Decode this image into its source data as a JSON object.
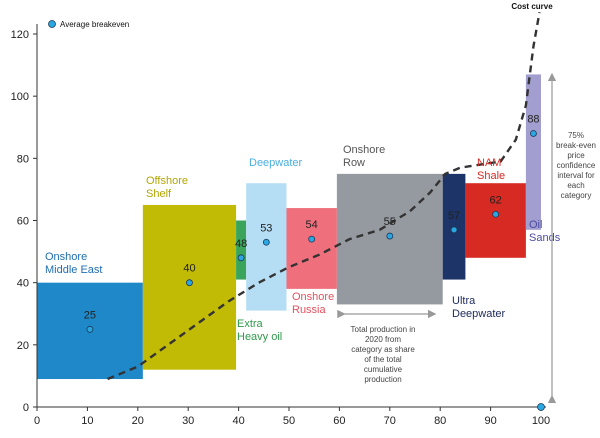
{
  "chart_data": {
    "type": "bar",
    "subtype": "cost-curve (variable-width bars)",
    "title": "",
    "xlabel": "",
    "ylabel": "",
    "xlim": [
      0,
      100
    ],
    "ylim": [
      0,
      120
    ],
    "x_ticks": [
      0,
      10,
      20,
      30,
      40,
      50,
      60,
      70,
      80,
      90,
      100
    ],
    "y_ticks": [
      0,
      20,
      40,
      60,
      80,
      100,
      120
    ],
    "grid": false,
    "legend": {
      "label": "Average breakeven",
      "position": "top-left"
    },
    "categories": [
      {
        "name": "Onshore Middle East",
        "lines": [
          "Onshore",
          "Middle East"
        ],
        "x_start": 0,
        "x_end": 21,
        "low": 9,
        "high": 40,
        "avg": 25,
        "color": "#1f88c9",
        "label_color": "#1f6fb0"
      },
      {
        "name": "Offshore Shelf",
        "lines": [
          "Offshore",
          "Shelf"
        ],
        "x_start": 21,
        "x_end": 39.5,
        "low": 12,
        "high": 65,
        "avg": 40,
        "color": "#c2bb05",
        "label_color": "#b3a600"
      },
      {
        "name": "Extra Heavy oil",
        "lines": [
          "Extra",
          "Heavy oil"
        ],
        "x_start": 39.5,
        "x_end": 41.5,
        "low": 41,
        "high": 60,
        "avg": 48,
        "color": "#3aa55a",
        "label_color": "#2f9a4b"
      },
      {
        "name": "Deepwater",
        "lines": [
          "Deepwater"
        ],
        "x_start": 41.5,
        "x_end": 49.5,
        "low": 31,
        "high": 72,
        "avg": 53,
        "color": "#b5def5",
        "label_color": "#4aaee0"
      },
      {
        "name": "Onshore Russia",
        "lines": [
          "Onshore",
          "Russia"
        ],
        "x_start": 49.5,
        "x_end": 59.5,
        "low": 38,
        "high": 64,
        "avg": 54,
        "color": "#ef6f7c",
        "label_color": "#e3505f"
      },
      {
        "name": "Onshore Row",
        "lines": [
          "Onshore",
          "Row"
        ],
        "x_start": 59.5,
        "x_end": 80.5,
        "low": 33,
        "high": 75,
        "avg": 55,
        "color": "#959aa0",
        "label_color": "#555555"
      },
      {
        "name": "Ultra Deepwater",
        "lines": [
          "Ultra",
          "Deepwater"
        ],
        "x_start": 80.5,
        "x_end": 85,
        "low": 41,
        "high": 75,
        "avg": 57,
        "color": "#1c3467",
        "label_color": "#1c2a5a"
      },
      {
        "name": "NAM Shale",
        "lines": [
          "NAM",
          "Shale"
        ],
        "x_start": 85,
        "x_end": 97,
        "low": 48,
        "high": 72,
        "avg": 62,
        "color": "#d62a22",
        "label_color": "#d62a22"
      },
      {
        "name": "Oil Sands",
        "lines": [
          "Oil",
          "Sands"
        ],
        "x_start": 97,
        "x_end": 100,
        "low": 57,
        "high": 107,
        "avg": 88,
        "color": "#a29fd0",
        "label_color": "#4b4a9f"
      }
    ],
    "cost_curve": {
      "label": "Cost curve",
      "points": [
        [
          14,
          9
        ],
        [
          20,
          13
        ],
        [
          26,
          20
        ],
        [
          32,
          27
        ],
        [
          38,
          34
        ],
        [
          44,
          40
        ],
        [
          50,
          45
        ],
        [
          56,
          49
        ],
        [
          62,
          54
        ],
        [
          68,
          57
        ],
        [
          74,
          63
        ],
        [
          78,
          69
        ],
        [
          81,
          75
        ],
        [
          84,
          77
        ],
        [
          88,
          78
        ],
        [
          92,
          79
        ],
        [
          95,
          86
        ],
        [
          97,
          97
        ],
        [
          98.5,
          116
        ],
        [
          99.7,
          127
        ]
      ]
    },
    "final_point": {
      "x": 100,
      "y": 0
    },
    "annotations": {
      "production_note": [
        "Total production in",
        "2020 from",
        "category as share",
        "of the total",
        "cumulative",
        "production"
      ],
      "confidence_note": [
        "75%",
        "break-even",
        "price",
        "confidence",
        "interval for",
        "each",
        "category"
      ]
    }
  }
}
